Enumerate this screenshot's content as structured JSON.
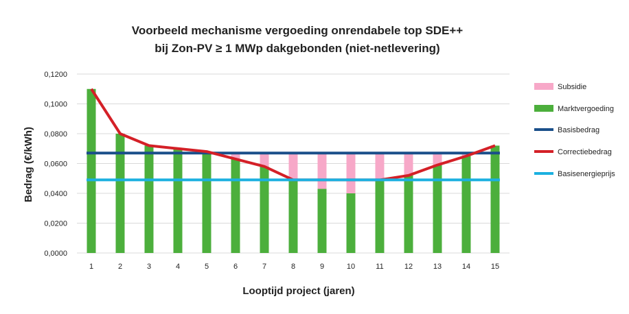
{
  "chart_data": {
    "type": "bar",
    "title_line1": "Voorbeeld mechanisme vergoeding onrendabele top SDE++",
    "title_line2": "bij Zon-PV ≥ 1 MWp dakgebonden (niet-netlevering)",
    "xlabel": "Looptijd project (jaren)",
    "ylabel": "Bedrag (€/kWh)",
    "ylim": [
      0,
      0.12
    ],
    "yticks": [
      0.0,
      0.02,
      0.04,
      0.06,
      0.08,
      0.1,
      0.12
    ],
    "ytick_labels": [
      "0,0000",
      "0,0200",
      "0,0400",
      "0,0600",
      "0,0800",
      "0,1000",
      "0,1200"
    ],
    "categories": [
      "1",
      "2",
      "3",
      "4",
      "5",
      "6",
      "7",
      "8",
      "9",
      "10",
      "11",
      "12",
      "13",
      "14",
      "15"
    ],
    "grid": true,
    "legend_position": "right",
    "series": [
      {
        "name": "Subsidie",
        "kind": "bar-stack",
        "color": "#f7a8c8",
        "values": [
          0,
          0,
          0,
          0,
          0,
          0.004,
          0.009,
          0.018,
          0.024,
          0.027,
          0.018,
          0.015,
          0.008,
          0.002,
          0
        ]
      },
      {
        "name": "Marktvergoeding",
        "kind": "bar",
        "color": "#4caf3c",
        "values": [
          0.11,
          0.08,
          0.072,
          0.07,
          0.068,
          0.063,
          0.058,
          0.049,
          0.043,
          0.04,
          0.049,
          0.052,
          0.059,
          0.065,
          0.072
        ]
      },
      {
        "name": "Basisbedrag",
        "kind": "line",
        "color": "#1a4f8a",
        "values": [
          0.067,
          0.067,
          0.067,
          0.067,
          0.067,
          0.067,
          0.067,
          0.067,
          0.067,
          0.067,
          0.067,
          0.067,
          0.067,
          0.067,
          0.067
        ]
      },
      {
        "name": "Correctiebedrag",
        "kind": "line",
        "color": "#d42027",
        "values": [
          0.11,
          0.08,
          0.072,
          0.07,
          0.068,
          0.063,
          0.058,
          0.049,
          0.049,
          0.049,
          0.049,
          0.052,
          0.059,
          0.065,
          0.072
        ]
      },
      {
        "name": "Basisenergieprijs",
        "kind": "line",
        "color": "#1bb0e0",
        "values": [
          0.049,
          0.049,
          0.049,
          0.049,
          0.049,
          0.049,
          0.049,
          0.049,
          0.049,
          0.049,
          0.049,
          0.049,
          0.049,
          0.049,
          0.049
        ]
      }
    ],
    "colors": {
      "grid": "#d9d9d9",
      "text": "#222222"
    }
  }
}
